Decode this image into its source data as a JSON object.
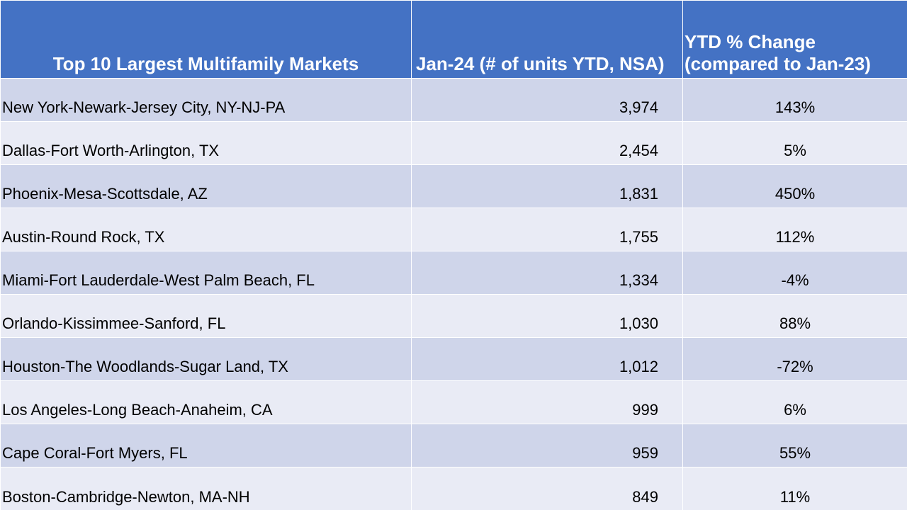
{
  "chart_data": {
    "type": "table",
    "columns": [
      "Top 10 Largest Multifamily Markets",
      "Jan-24 (# of units YTD, NSA)",
      "YTD % Change (compared to Jan-23)"
    ],
    "header": {
      "col1": "Top 10 Largest Multifamily Markets",
      "col2": "Jan-24 (# of units YTD, NSA)",
      "col3_line1": "YTD % Change",
      "col3_line2": "(compared to Jan-23)"
    },
    "rows": [
      {
        "market": "New York-Newark-Jersey City, NY-NJ-PA",
        "units": "3,974",
        "pct": "143%"
      },
      {
        "market": "Dallas-Fort Worth-Arlington, TX",
        "units": "2,454",
        "pct": "5%"
      },
      {
        "market": "Phoenix-Mesa-Scottsdale, AZ",
        "units": "1,831",
        "pct": "450%"
      },
      {
        "market": "Austin-Round Rock, TX",
        "units": "1,755",
        "pct": "112%"
      },
      {
        "market": "Miami-Fort Lauderdale-West Palm Beach, FL",
        "units": "1,334",
        "pct": "-4%"
      },
      {
        "market": "Orlando-Kissimmee-Sanford, FL",
        "units": "1,030",
        "pct": "88%"
      },
      {
        "market": "Houston-The Woodlands-Sugar Land, TX",
        "units": "1,012",
        "pct": "-72%"
      },
      {
        "market": "Los Angeles-Long Beach-Anaheim, CA",
        "units": "999",
        "pct": "6%"
      },
      {
        "market": "Cape Coral-Fort Myers, FL",
        "units": "959",
        "pct": "55%"
      },
      {
        "market": "Boston-Cambridge-Newton, MA-NH",
        "units": "849",
        "pct": "11%"
      }
    ],
    "colors": {
      "header_bg": "#4472c4",
      "header_text": "#ffffff",
      "row_band_1": "#cfd5ea",
      "row_band_2": "#e9ebf5"
    }
  }
}
